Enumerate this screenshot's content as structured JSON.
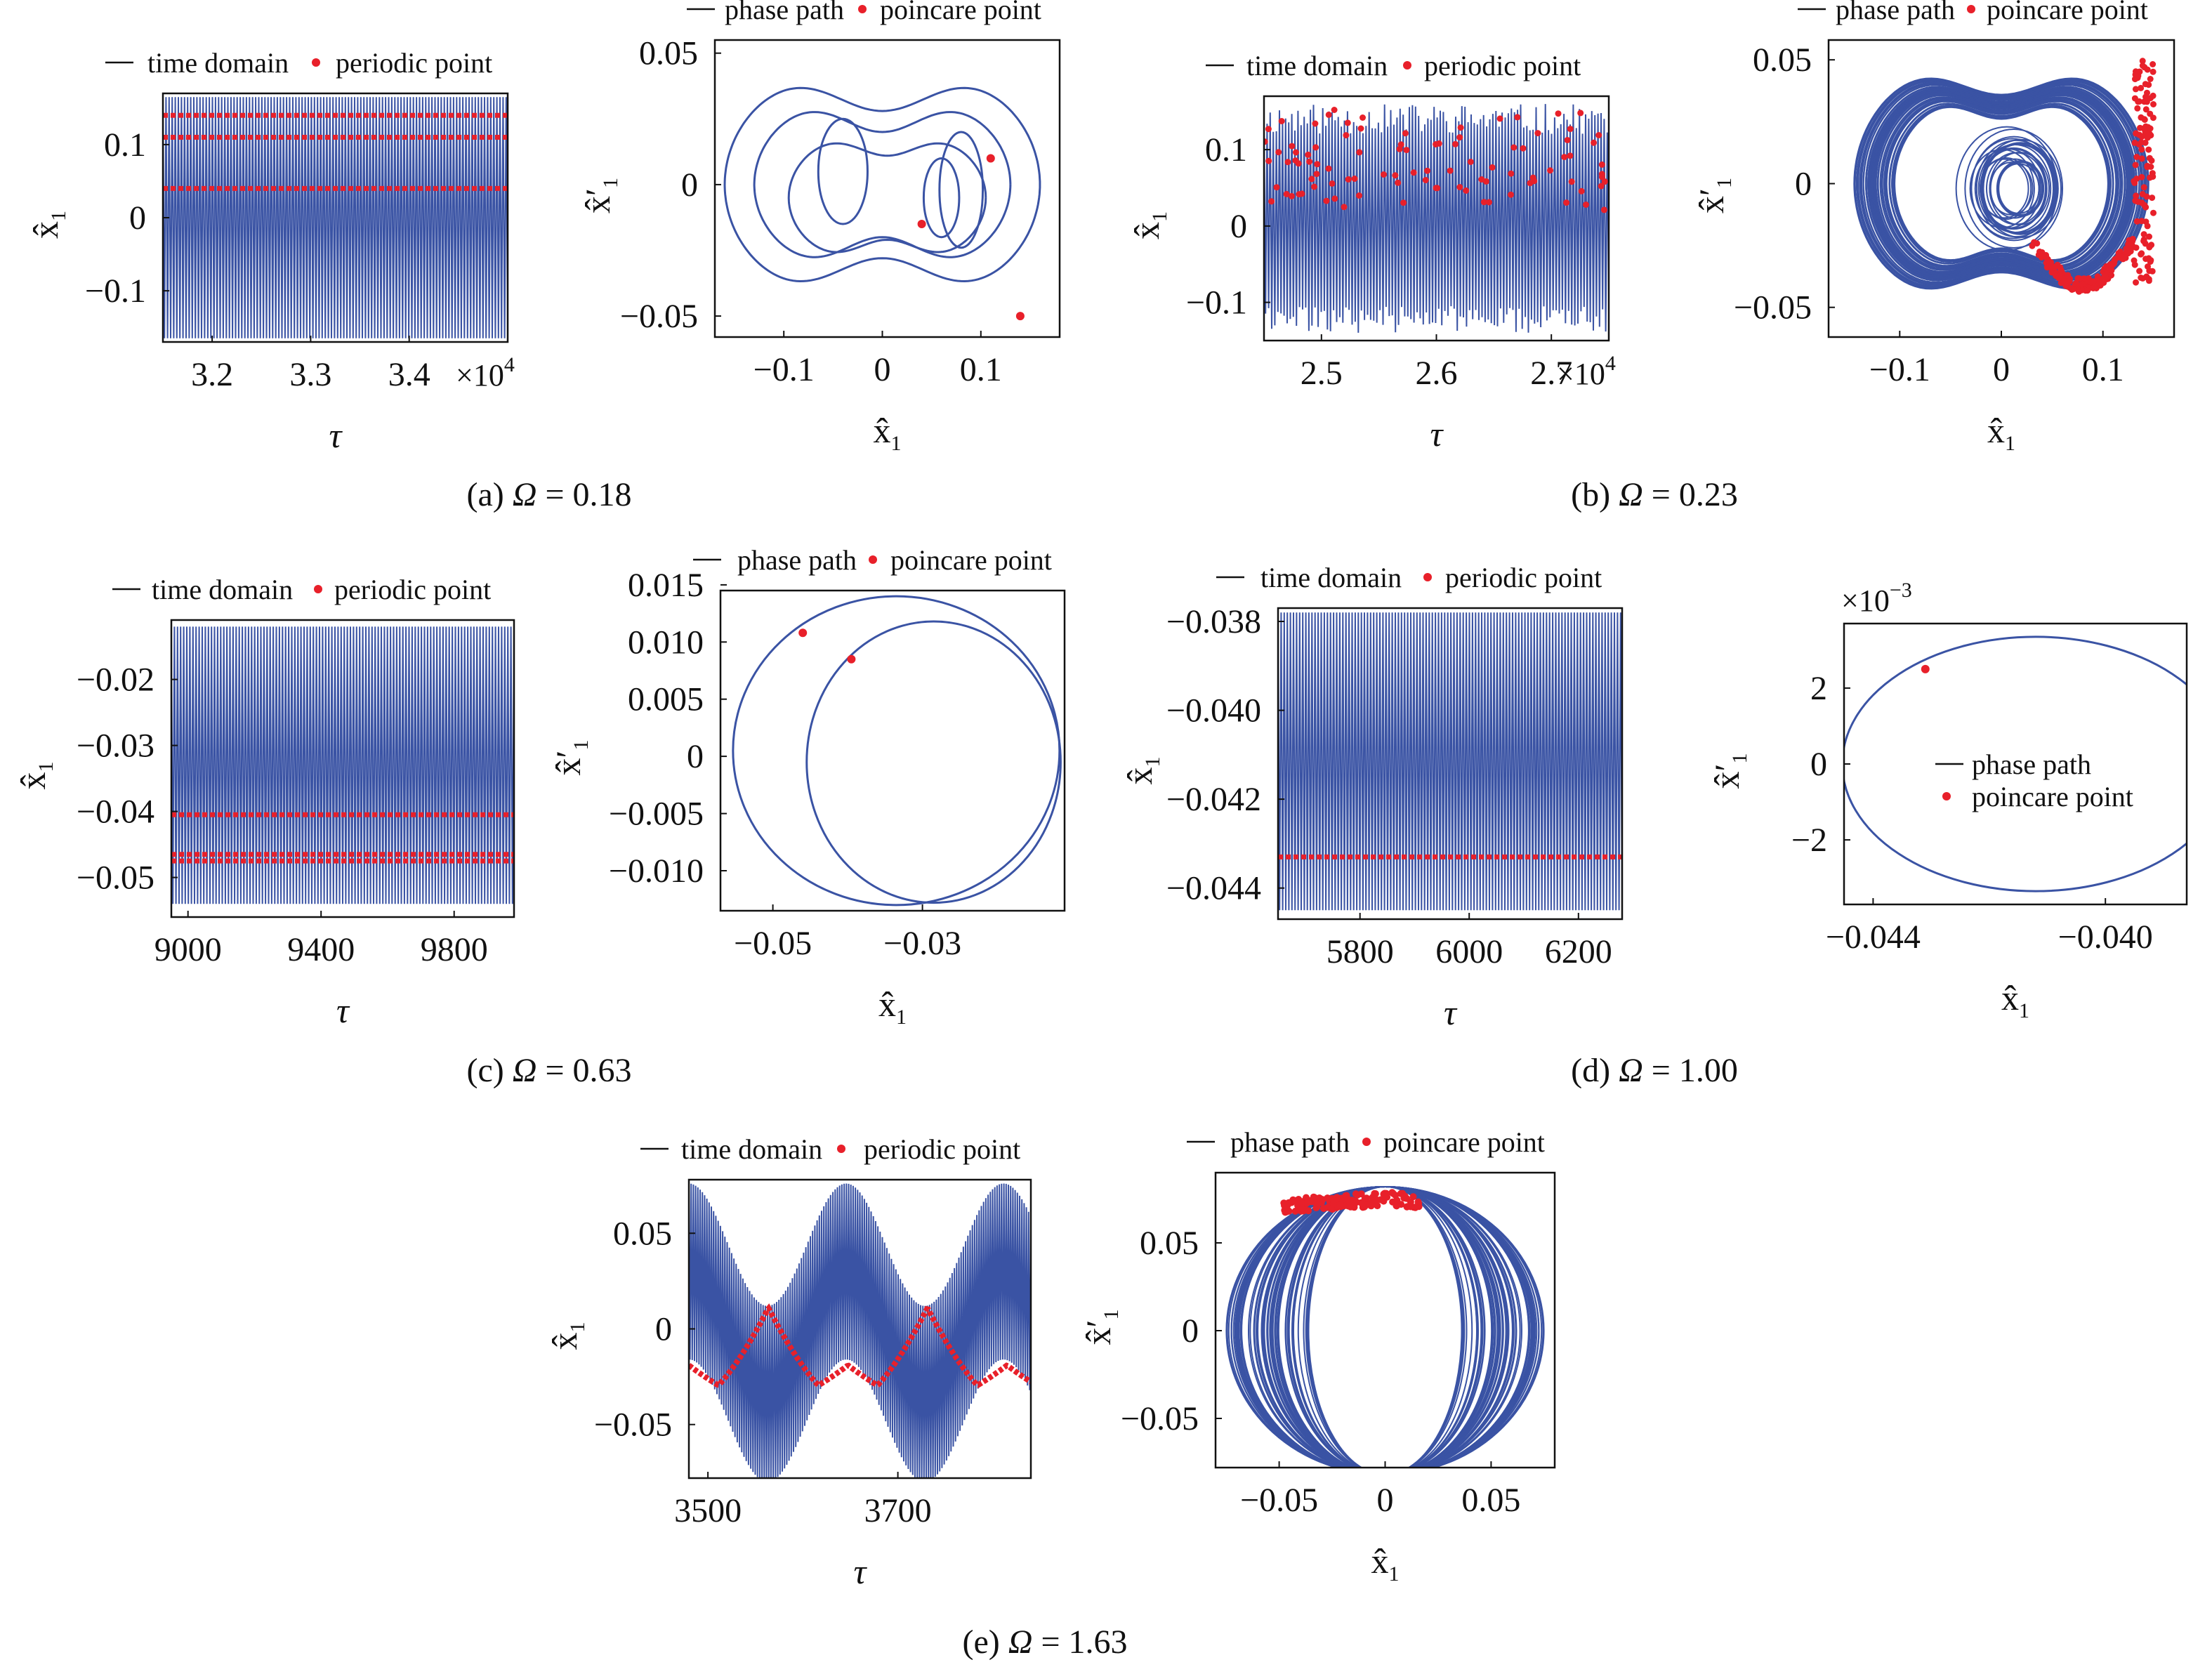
{
  "colors": {
    "trace": "#3a53a4",
    "marker": "#e8202a",
    "axis": "#111111"
  },
  "symbols": {
    "x_hat": "x̂",
    "x_hat_prime": "x̂′",
    "sub": "1",
    "tau": "τ",
    "exp_1e4": "×10",
    "exp_1e4_power": "4",
    "exp_1e_3": "×10",
    "exp_1e_3_power": "−3"
  },
  "chart_data": [
    {
      "type": "line",
      "panel": "a",
      "kind": "time",
      "legend": [
        "time domain",
        "periodic point"
      ],
      "legend_placement": "top",
      "xlabel": "τ",
      "ylabel": "x̂1",
      "xlim": [
        31500,
        35000
      ],
      "ylim": [
        -0.17,
        0.17
      ],
      "xticks": [
        32000,
        33000,
        34000
      ],
      "xticklabels": [
        "3.2",
        "3.3",
        "3.4"
      ],
      "x_multiplier_label": "×10^4",
      "yticks": [
        -0.1,
        0,
        0.1
      ],
      "yticklabels": [
        "−0.1",
        "0",
        "0.1"
      ],
      "envelope": [
        -0.165,
        0.165
      ],
      "markers": [
        0.14,
        0.11,
        0.04
      ]
    },
    {
      "type": "scatter",
      "panel": "a",
      "kind": "phase",
      "legend": [
        "phase path",
        "poincare point"
      ],
      "legend_placement": "top",
      "xlabel": "x̂1",
      "ylabel": "x̂′1",
      "xlim": [
        -0.17,
        0.18
      ],
      "ylim": [
        -0.058,
        0.055
      ],
      "xticks": [
        -0.1,
        0,
        0.1
      ],
      "xticklabels": [
        "−0.1",
        "0",
        "0.1"
      ],
      "yticks": [
        -0.05,
        0,
        0.05
      ],
      "yticklabels": [
        "−0.05",
        "0",
        "0.05"
      ],
      "points": [
        [
          0.11,
          0.01
        ],
        [
          0.04,
          -0.015
        ],
        [
          0.14,
          -0.05
        ]
      ]
    },
    {
      "type": "line",
      "panel": "b",
      "kind": "time",
      "legend": [
        "time domain",
        "periodic point"
      ],
      "legend_placement": "top",
      "xlabel": "τ",
      "ylabel": "x̂1",
      "xlim": [
        24500,
        27500
      ],
      "ylim": [
        -0.15,
        0.17
      ],
      "xticks": [
        25000,
        26000,
        27000
      ],
      "xticklabels": [
        "2.5",
        "2.6",
        "2.7"
      ],
      "x_multiplier_label": "×10^4",
      "yticks": [
        -0.1,
        0,
        0.1
      ],
      "yticklabels": [
        "−0.1",
        "0",
        "0.1"
      ],
      "envelope": [
        -0.14,
        0.16
      ],
      "markers": "scattered_chaotic"
    },
    {
      "type": "scatter",
      "panel": "b",
      "kind": "phase",
      "legend": [
        "phase path",
        "poincare point"
      ],
      "legend_placement": "top",
      "xlabel": "x̂1",
      "ylabel": "x̂′1",
      "xlim": [
        -0.17,
        0.17
      ],
      "ylim": [
        -0.062,
        0.058
      ],
      "xticks": [
        -0.1,
        0,
        0.1
      ],
      "xticklabels": [
        "−0.1",
        "0",
        "0.1"
      ],
      "yticks": [
        -0.05,
        0,
        0.05
      ],
      "yticklabels": [
        "−0.05",
        "0",
        "0.05"
      ],
      "points": "chaotic_strange_attractor"
    },
    {
      "type": "line",
      "panel": "c",
      "kind": "time",
      "legend": [
        "time domain",
        "periodic point"
      ],
      "legend_placement": "top",
      "xlabel": "τ",
      "ylabel": "x̂1",
      "xlim": [
        8950,
        9980
      ],
      "ylim": [
        -0.056,
        -0.011
      ],
      "xticks": [
        9000,
        9400,
        9800
      ],
      "xticklabels": [
        "9000",
        "9400",
        "9800"
      ],
      "yticks": [
        -0.02,
        -0.03,
        -0.04,
        -0.05
      ],
      "yticklabels": [
        "−0.02",
        "−0.03",
        "−0.04",
        "−0.05"
      ],
      "envelope": [
        -0.054,
        -0.012
      ],
      "markers": [
        -0.0405,
        -0.0465,
        -0.0475
      ]
    },
    {
      "type": "scatter",
      "panel": "c",
      "kind": "phase",
      "legend": [
        "phase path",
        "poincare point"
      ],
      "legend_placement": "top",
      "xlabel": "x̂1",
      "ylabel": "x̂′1",
      "xlim": [
        -0.057,
        -0.011
      ],
      "ylim": [
        -0.0135,
        0.0145
      ],
      "xticks": [
        -0.05,
        -0.03
      ],
      "xticklabels": [
        "−0.05",
        "−0.03"
      ],
      "yticks": [
        0.015,
        0.01,
        0.005,
        0,
        -0.005,
        -0.01
      ],
      "yticklabels": [
        "0.015",
        "0.010",
        "0.005",
        "0",
        "−0.005",
        "−0.010"
      ],
      "points": [
        [
          -0.046,
          0.0108
        ],
        [
          -0.0395,
          0.0085
        ]
      ]
    },
    {
      "type": "line",
      "panel": "d",
      "kind": "time",
      "legend": [
        "time domain",
        "periodic point"
      ],
      "legend_placement": "top",
      "xlabel": "τ",
      "ylabel": "x̂1",
      "xlim": [
        5650,
        6280
      ],
      "ylim": [
        -0.0447,
        -0.0377
      ],
      "xticks": [
        5800,
        6000,
        6200
      ],
      "xticklabels": [
        "5800",
        "6000",
        "6200"
      ],
      "yticks": [
        -0.038,
        -0.04,
        -0.042,
        -0.044
      ],
      "yticklabels": [
        "−0.038",
        "−0.040",
        "−0.042",
        "−0.044"
      ],
      "envelope": [
        -0.0445,
        -0.0378
      ],
      "markers": [
        -0.0433
      ]
    },
    {
      "type": "scatter",
      "panel": "d",
      "kind": "phase",
      "legend": [
        "phase path",
        "poincare point"
      ],
      "legend_placement": "center",
      "xlabel": "x̂1",
      "ylabel": "x̂′1",
      "xlim": [
        -0.0445,
        -0.0386
      ],
      "ylim": [
        -0.0037,
        0.0037
      ],
      "xticks": [
        -0.044,
        -0.04
      ],
      "xticklabels": [
        "−0.044",
        "−0.040"
      ],
      "y_multiplier_label": "×10^−3",
      "yticks": [
        0.002,
        0,
        -0.002
      ],
      "yticklabels": [
        "2",
        "0",
        "−2"
      ],
      "points": [
        [
          -0.0431,
          0.0025
        ]
      ]
    },
    {
      "type": "line",
      "panel": "e",
      "kind": "time",
      "legend": [
        "time domain",
        "periodic point"
      ],
      "legend_placement": "top",
      "xlabel": "τ",
      "ylabel": "x̂1",
      "xlim": [
        3480,
        3840
      ],
      "ylim": [
        -0.078,
        0.078
      ],
      "xticks": [
        3500,
        3700
      ],
      "xticklabels": [
        "3500",
        "3700"
      ],
      "yticks": [
        0.05,
        0,
        -0.05
      ],
      "yticklabels": [
        "0.05",
        "0",
        "−0.05"
      ],
      "envelope": [
        -0.075,
        0.073
      ],
      "markers": "slow_drift_curve"
    },
    {
      "type": "scatter",
      "panel": "e",
      "kind": "phase",
      "legend": [
        "phase path",
        "poincare point"
      ],
      "legend_placement": "top",
      "xlabel": "x̂1",
      "ylabel": "x̂′1",
      "xlim": [
        -0.08,
        0.08
      ],
      "ylim": [
        -0.078,
        0.09
      ],
      "xticks": [
        -0.05,
        0,
        0.05
      ],
      "xticklabels": [
        "−0.05",
        "0",
        "0.05"
      ],
      "yticks": [
        0.05,
        0,
        -0.05
      ],
      "yticklabels": [
        "0.05",
        "0",
        "−0.05"
      ],
      "points": "top_arc_cluster"
    }
  ],
  "captions": [
    {
      "letter": "(a) ",
      "omega": "Ω",
      "value": " = 0.18"
    },
    {
      "letter": "(b) ",
      "omega": "Ω",
      "value": " = 0.23"
    },
    {
      "letter": "(c) ",
      "omega": "Ω",
      "value": " = 0.63"
    },
    {
      "letter": "(d) ",
      "omega": "Ω",
      "value": " = 1.00"
    },
    {
      "letter": "(e) ",
      "omega": "Ω",
      "value": " = 1.63"
    }
  ]
}
